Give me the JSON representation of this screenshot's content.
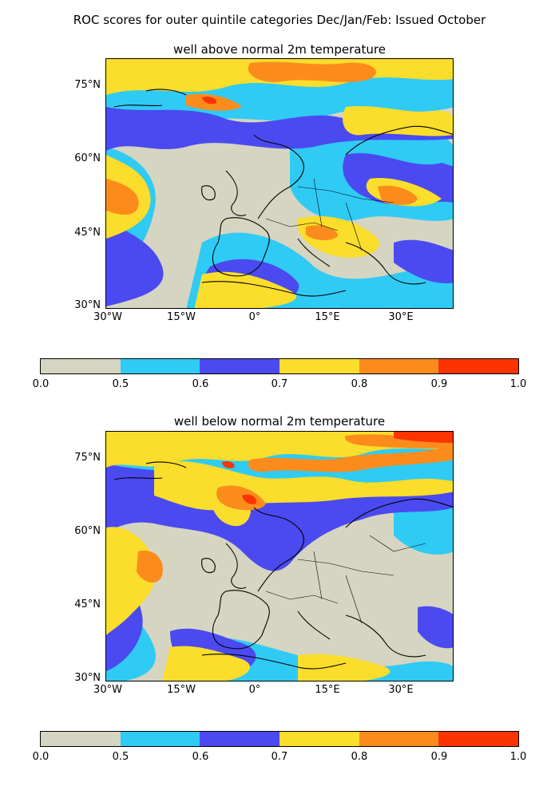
{
  "suptitle": "ROC scores for outer quintile categories Dec/Jan/Feb: Issued October",
  "colors": {
    "land_bg": "#d6d5c1",
    "coast": "#000000"
  },
  "colorbar": {
    "ticks": [
      "0.0",
      "0.5",
      "0.6",
      "0.7",
      "0.8",
      "0.9",
      "1.0"
    ],
    "bins": [
      {
        "range": "0.0-0.5",
        "color": "#d6d5c1"
      },
      {
        "range": "0.5-0.6",
        "color": "#2fcbf5"
      },
      {
        "range": "0.6-0.7",
        "color": "#4b4af0"
      },
      {
        "range": "0.7-0.8",
        "color": "#fbdd2b"
      },
      {
        "range": "0.8-0.9",
        "color": "#fb8c1c"
      },
      {
        "range": "0.9-1.0",
        "color": "#fb3400"
      }
    ]
  },
  "axes": {
    "y_ticks": [
      "75°N",
      "60°N",
      "45°N",
      "30°N"
    ],
    "x_ticks": [
      "30°W",
      "15°W",
      "0°",
      "15°E",
      "30°E"
    ]
  },
  "panels": [
    {
      "title": "well above normal 2m temperature"
    },
    {
      "title": "well below normal 2m temperature"
    }
  ]
}
